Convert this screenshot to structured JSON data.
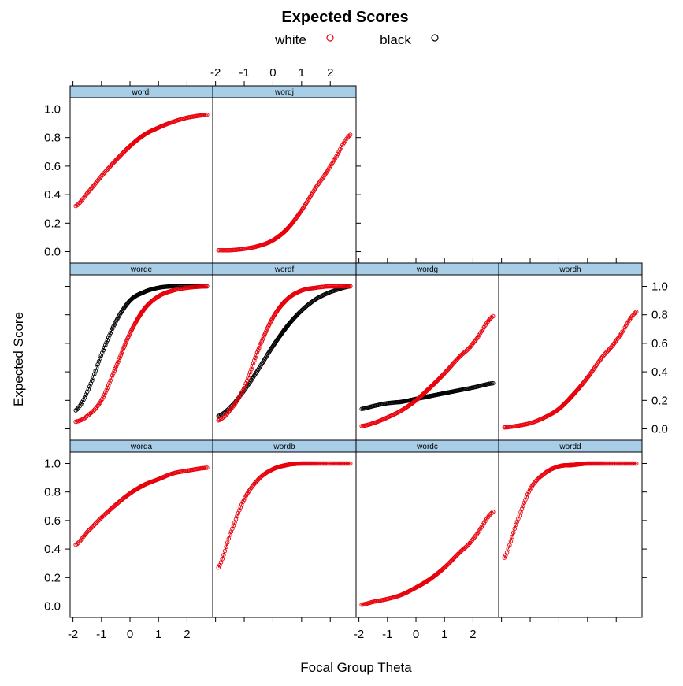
{
  "chart_data": {
    "type": "line",
    "title": "Expected Scores",
    "xlabel": "Focal Group Theta",
    "ylabel": "Expected Score",
    "xlim": [
      -2.1,
      2.9
    ],
    "ylim": [
      -0.08,
      1.08
    ],
    "x_ticks": [
      -2,
      -1,
      0,
      1,
      2
    ],
    "y_ticks": [
      0.0,
      0.2,
      0.4,
      0.6,
      0.8,
      1.0
    ],
    "x_tick_labels": [
      "-2",
      "-1",
      "0",
      "1",
      "2"
    ],
    "y_tick_labels": [
      "0.0",
      "0.2",
      "0.4",
      "0.6",
      "0.8",
      "1.0"
    ],
    "grid": false,
    "legend": {
      "position": "top",
      "entries": [
        {
          "name": "white",
          "color": "#e8000b"
        },
        {
          "name": "black",
          "color": "#000000"
        }
      ]
    },
    "x_samples": [
      -1.9,
      -1.5,
      -1.0,
      -0.5,
      0.0,
      0.5,
      1.0,
      1.5,
      2.0,
      2.7
    ],
    "panels": [
      {
        "name": "worda",
        "row": 2,
        "col": 0,
        "series": [
          {
            "name": "white",
            "values": [
              0.43,
              0.52,
              0.62,
              0.71,
              0.79,
              0.85,
              0.89,
              0.93,
              0.95,
              0.97
            ]
          }
        ]
      },
      {
        "name": "wordb",
        "row": 2,
        "col": 1,
        "series": [
          {
            "name": "white",
            "values": [
              0.27,
              0.5,
              0.75,
              0.89,
              0.96,
              0.99,
              1.0,
              1.0,
              1.0,
              1.0
            ]
          }
        ]
      },
      {
        "name": "wordc",
        "row": 2,
        "col": 2,
        "series": [
          {
            "name": "white",
            "values": [
              0.01,
              0.03,
              0.05,
              0.08,
              0.13,
              0.19,
              0.27,
              0.37,
              0.47,
              0.66
            ]
          }
        ]
      },
      {
        "name": "wordd",
        "row": 2,
        "col": 3,
        "series": [
          {
            "name": "white",
            "values": [
              0.34,
              0.57,
              0.82,
              0.93,
              0.98,
              0.99,
              1.0,
              1.0,
              1.0,
              1.0
            ]
          }
        ]
      },
      {
        "name": "worde",
        "row": 1,
        "col": 0,
        "series": [
          {
            "name": "white",
            "values": [
              0.05,
              0.09,
              0.2,
              0.43,
              0.67,
              0.84,
              0.93,
              0.97,
              0.99,
              1.0
            ]
          },
          {
            "name": "black",
            "values": [
              0.13,
              0.26,
              0.52,
              0.75,
              0.9,
              0.96,
              0.99,
              1.0,
              1.0,
              1.0
            ]
          }
        ]
      },
      {
        "name": "wordf",
        "row": 1,
        "col": 1,
        "series": [
          {
            "name": "white",
            "values": [
              0.06,
              0.13,
              0.29,
              0.56,
              0.78,
              0.91,
              0.97,
              0.99,
              1.0,
              1.0
            ]
          },
          {
            "name": "black",
            "values": [
              0.09,
              0.15,
              0.27,
              0.42,
              0.58,
              0.72,
              0.83,
              0.91,
              0.96,
              1.0
            ]
          }
        ]
      },
      {
        "name": "wordg",
        "row": 1,
        "col": 2,
        "series": [
          {
            "name": "white",
            "values": [
              0.02,
              0.04,
              0.08,
              0.13,
              0.2,
              0.29,
              0.39,
              0.5,
              0.6,
              0.79
            ]
          },
          {
            "name": "black",
            "values": [
              0.14,
              0.16,
              0.18,
              0.19,
              0.21,
              0.23,
              0.25,
              0.27,
              0.29,
              0.32
            ]
          }
        ]
      },
      {
        "name": "wordh",
        "row": 1,
        "col": 3,
        "series": [
          {
            "name": "white",
            "values": [
              0.01,
              0.02,
              0.04,
              0.08,
              0.14,
              0.24,
              0.36,
              0.5,
              0.62,
              0.82
            ]
          }
        ]
      },
      {
        "name": "wordi",
        "row": 0,
        "col": 0,
        "series": [
          {
            "name": "white",
            "values": [
              0.32,
              0.41,
              0.53,
              0.64,
              0.74,
              0.82,
              0.87,
              0.91,
              0.94,
              0.96
            ]
          }
        ]
      },
      {
        "name": "wordj",
        "row": 0,
        "col": 1,
        "series": [
          {
            "name": "white",
            "values": [
              0.01,
              0.01,
              0.02,
              0.04,
              0.08,
              0.16,
              0.29,
              0.45,
              0.6,
              0.82
            ]
          }
        ]
      }
    ]
  }
}
